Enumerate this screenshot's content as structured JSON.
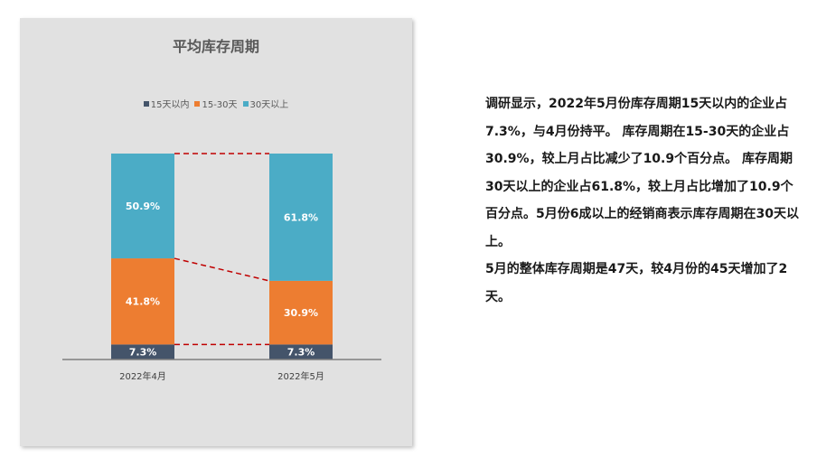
{
  "chart_data": {
    "type": "bar",
    "stacked": true,
    "title": "平均库存周期",
    "categories": [
      "2022年4月",
      "2022年5月"
    ],
    "series": [
      {
        "name": "15天以内",
        "color": "#44546a",
        "values": [
          7.3,
          7.3
        ],
        "labels": [
          "7.3%",
          "7.3%"
        ]
      },
      {
        "name": "15-30天",
        "color": "#ed7d31",
        "values": [
          41.8,
          30.9
        ],
        "labels": [
          "41.8%",
          "30.9%"
        ]
      },
      {
        "name": "30天以上",
        "color": "#4bacc6",
        "values": [
          50.9,
          61.8
        ],
        "labels": [
          "50.9%",
          "61.8%"
        ]
      }
    ],
    "ylim": [
      0,
      100
    ],
    "legend_position": "top",
    "series_lines": true
  },
  "text": {
    "paragraph1": "调研显示，2022年5月份库存周期15天以内的企业占7.3%，与4月份持平。 库存周期在15-30天的企业占30.9%，较上月占比减少了10.9个百分点。 库存周期30天以上的企业占61.8%，较上月占比增加了10.9个百分点。5月份6成以上的经销商表示库存周期在30天以上。",
    "paragraph2": "5月的整体库存周期是47天，较4月份的45天增加了2天。"
  }
}
